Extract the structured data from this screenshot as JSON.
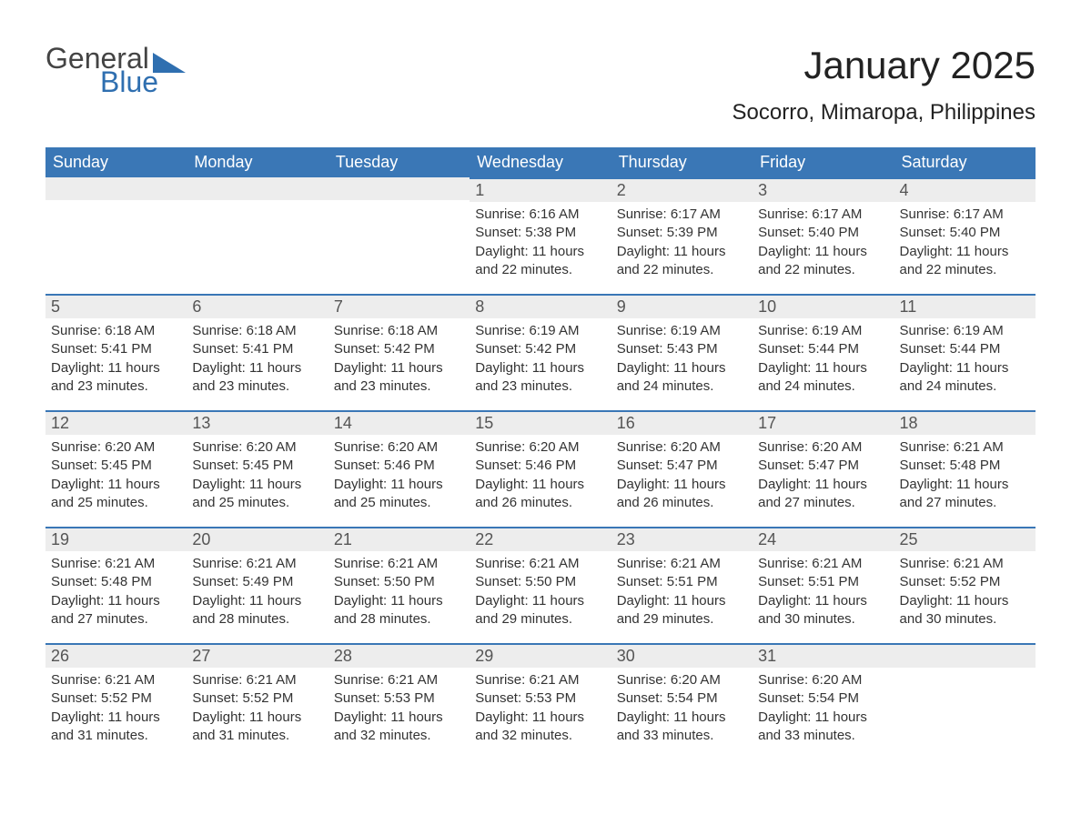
{
  "logo": {
    "line1": "General",
    "line2": "Blue",
    "accent_color": "#2f6fb0"
  },
  "title": "January 2025",
  "location": "Socorro, Mimaropa, Philippines",
  "styling": {
    "header_bg": "#3a77b6",
    "header_text_color": "#ffffff",
    "daynum_bg": "#ededed",
    "daynum_border_top": "#3a77b6",
    "body_text_color": "#333333",
    "page_bg": "#ffffff",
    "title_fontsize": 42,
    "location_fontsize": 24,
    "weekday_fontsize": 18,
    "daynum_fontsize": 18,
    "cell_fontsize": 15
  },
  "weekdays": [
    "Sunday",
    "Monday",
    "Tuesday",
    "Wednesday",
    "Thursday",
    "Friday",
    "Saturday"
  ],
  "weeks": [
    [
      null,
      null,
      null,
      {
        "n": "1",
        "sunrise": "Sunrise: 6:16 AM",
        "sunset": "Sunset: 5:38 PM",
        "daylight": "Daylight: 11 hours and 22 minutes."
      },
      {
        "n": "2",
        "sunrise": "Sunrise: 6:17 AM",
        "sunset": "Sunset: 5:39 PM",
        "daylight": "Daylight: 11 hours and 22 minutes."
      },
      {
        "n": "3",
        "sunrise": "Sunrise: 6:17 AM",
        "sunset": "Sunset: 5:40 PM",
        "daylight": "Daylight: 11 hours and 22 minutes."
      },
      {
        "n": "4",
        "sunrise": "Sunrise: 6:17 AM",
        "sunset": "Sunset: 5:40 PM",
        "daylight": "Daylight: 11 hours and 22 minutes."
      }
    ],
    [
      {
        "n": "5",
        "sunrise": "Sunrise: 6:18 AM",
        "sunset": "Sunset: 5:41 PM",
        "daylight": "Daylight: 11 hours and 23 minutes."
      },
      {
        "n": "6",
        "sunrise": "Sunrise: 6:18 AM",
        "sunset": "Sunset: 5:41 PM",
        "daylight": "Daylight: 11 hours and 23 minutes."
      },
      {
        "n": "7",
        "sunrise": "Sunrise: 6:18 AM",
        "sunset": "Sunset: 5:42 PM",
        "daylight": "Daylight: 11 hours and 23 minutes."
      },
      {
        "n": "8",
        "sunrise": "Sunrise: 6:19 AM",
        "sunset": "Sunset: 5:42 PM",
        "daylight": "Daylight: 11 hours and 23 minutes."
      },
      {
        "n": "9",
        "sunrise": "Sunrise: 6:19 AM",
        "sunset": "Sunset: 5:43 PM",
        "daylight": "Daylight: 11 hours and 24 minutes."
      },
      {
        "n": "10",
        "sunrise": "Sunrise: 6:19 AM",
        "sunset": "Sunset: 5:44 PM",
        "daylight": "Daylight: 11 hours and 24 minutes."
      },
      {
        "n": "11",
        "sunrise": "Sunrise: 6:19 AM",
        "sunset": "Sunset: 5:44 PM",
        "daylight": "Daylight: 11 hours and 24 minutes."
      }
    ],
    [
      {
        "n": "12",
        "sunrise": "Sunrise: 6:20 AM",
        "sunset": "Sunset: 5:45 PM",
        "daylight": "Daylight: 11 hours and 25 minutes."
      },
      {
        "n": "13",
        "sunrise": "Sunrise: 6:20 AM",
        "sunset": "Sunset: 5:45 PM",
        "daylight": "Daylight: 11 hours and 25 minutes."
      },
      {
        "n": "14",
        "sunrise": "Sunrise: 6:20 AM",
        "sunset": "Sunset: 5:46 PM",
        "daylight": "Daylight: 11 hours and 25 minutes."
      },
      {
        "n": "15",
        "sunrise": "Sunrise: 6:20 AM",
        "sunset": "Sunset: 5:46 PM",
        "daylight": "Daylight: 11 hours and 26 minutes."
      },
      {
        "n": "16",
        "sunrise": "Sunrise: 6:20 AM",
        "sunset": "Sunset: 5:47 PM",
        "daylight": "Daylight: 11 hours and 26 minutes."
      },
      {
        "n": "17",
        "sunrise": "Sunrise: 6:20 AM",
        "sunset": "Sunset: 5:47 PM",
        "daylight": "Daylight: 11 hours and 27 minutes."
      },
      {
        "n": "18",
        "sunrise": "Sunrise: 6:21 AM",
        "sunset": "Sunset: 5:48 PM",
        "daylight": "Daylight: 11 hours and 27 minutes."
      }
    ],
    [
      {
        "n": "19",
        "sunrise": "Sunrise: 6:21 AM",
        "sunset": "Sunset: 5:48 PM",
        "daylight": "Daylight: 11 hours and 27 minutes."
      },
      {
        "n": "20",
        "sunrise": "Sunrise: 6:21 AM",
        "sunset": "Sunset: 5:49 PM",
        "daylight": "Daylight: 11 hours and 28 minutes."
      },
      {
        "n": "21",
        "sunrise": "Sunrise: 6:21 AM",
        "sunset": "Sunset: 5:50 PM",
        "daylight": "Daylight: 11 hours and 28 minutes."
      },
      {
        "n": "22",
        "sunrise": "Sunrise: 6:21 AM",
        "sunset": "Sunset: 5:50 PM",
        "daylight": "Daylight: 11 hours and 29 minutes."
      },
      {
        "n": "23",
        "sunrise": "Sunrise: 6:21 AM",
        "sunset": "Sunset: 5:51 PM",
        "daylight": "Daylight: 11 hours and 29 minutes."
      },
      {
        "n": "24",
        "sunrise": "Sunrise: 6:21 AM",
        "sunset": "Sunset: 5:51 PM",
        "daylight": "Daylight: 11 hours and 30 minutes."
      },
      {
        "n": "25",
        "sunrise": "Sunrise: 6:21 AM",
        "sunset": "Sunset: 5:52 PM",
        "daylight": "Daylight: 11 hours and 30 minutes."
      }
    ],
    [
      {
        "n": "26",
        "sunrise": "Sunrise: 6:21 AM",
        "sunset": "Sunset: 5:52 PM",
        "daylight": "Daylight: 11 hours and 31 minutes."
      },
      {
        "n": "27",
        "sunrise": "Sunrise: 6:21 AM",
        "sunset": "Sunset: 5:52 PM",
        "daylight": "Daylight: 11 hours and 31 minutes."
      },
      {
        "n": "28",
        "sunrise": "Sunrise: 6:21 AM",
        "sunset": "Sunset: 5:53 PM",
        "daylight": "Daylight: 11 hours and 32 minutes."
      },
      {
        "n": "29",
        "sunrise": "Sunrise: 6:21 AM",
        "sunset": "Sunset: 5:53 PM",
        "daylight": "Daylight: 11 hours and 32 minutes."
      },
      {
        "n": "30",
        "sunrise": "Sunrise: 6:20 AM",
        "sunset": "Sunset: 5:54 PM",
        "daylight": "Daylight: 11 hours and 33 minutes."
      },
      {
        "n": "31",
        "sunrise": "Sunrise: 6:20 AM",
        "sunset": "Sunset: 5:54 PM",
        "daylight": "Daylight: 11 hours and 33 minutes."
      },
      null
    ]
  ]
}
